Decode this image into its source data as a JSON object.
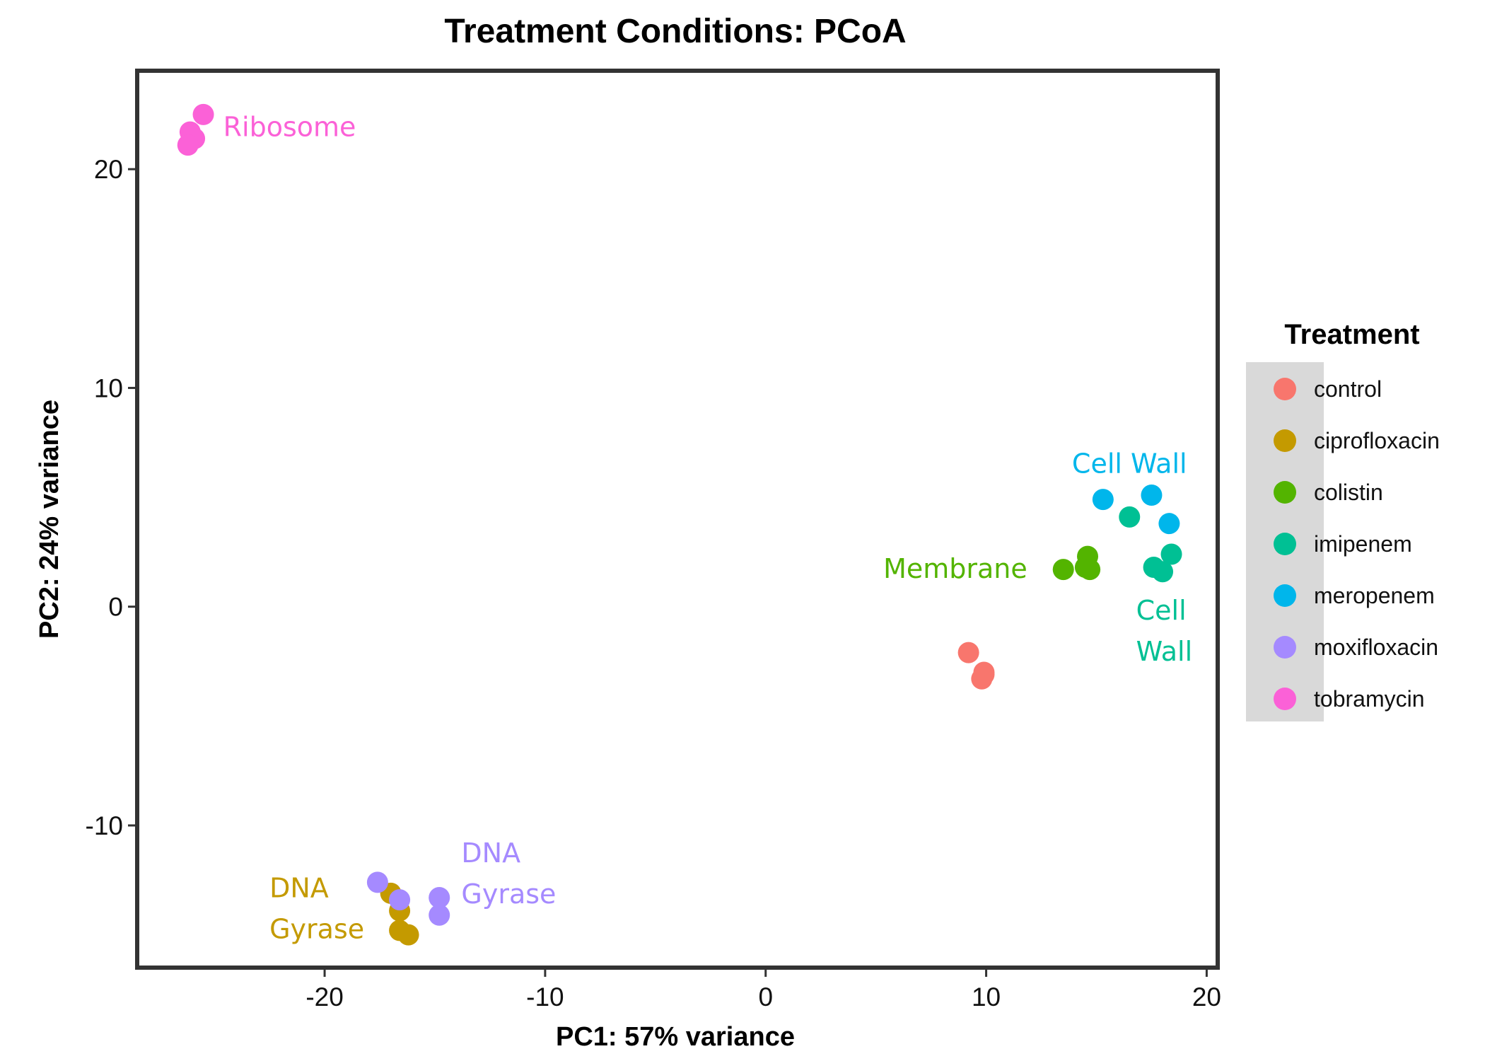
{
  "chart_data": {
    "type": "scatter",
    "title": "Treatment Conditions: PCoA",
    "xlabel": "PC1: 57% variance",
    "ylabel": "PC2: 24% variance",
    "xlim": [
      -28.5,
      20.5
    ],
    "ylim": [
      -16.5,
      24.5
    ],
    "xticks": [
      -20,
      -10,
      0,
      10,
      20
    ],
    "yticks": [
      -10,
      0,
      10,
      20
    ],
    "xtick_labels": [
      "-20",
      "-10",
      "0",
      "10",
      "20"
    ],
    "ytick_labels": [
      "-10",
      "0",
      "10",
      "20"
    ],
    "grid": false,
    "legend": {
      "title": "Treatment",
      "position": "right"
    },
    "series": [
      {
        "name": "control",
        "color": "#F8766D",
        "points": [
          [
            9.2,
            -2.1
          ],
          [
            9.9,
            -3.1
          ],
          [
            9.8,
            -3.3
          ],
          [
            9.9,
            -3.0
          ]
        ]
      },
      {
        "name": "ciprofloxacin",
        "color": "#C49A00",
        "points": [
          [
            -17.0,
            -13.1
          ],
          [
            -16.6,
            -13.9
          ],
          [
            -16.6,
            -14.8
          ],
          [
            -16.2,
            -15.0
          ]
        ]
      },
      {
        "name": "colistin",
        "color": "#53B400",
        "points": [
          [
            13.5,
            1.7
          ],
          [
            14.6,
            2.3
          ],
          [
            14.5,
            1.8
          ],
          [
            14.7,
            1.7
          ]
        ]
      },
      {
        "name": "imipenem",
        "color": "#00C094",
        "points": [
          [
            16.5,
            4.1
          ],
          [
            17.6,
            1.8
          ],
          [
            18.0,
            1.6
          ],
          [
            18.4,
            2.4
          ]
        ]
      },
      {
        "name": "meropenem",
        "color": "#00B6EB",
        "points": [
          [
            15.3,
            4.9
          ],
          [
            17.5,
            5.1
          ],
          [
            18.3,
            3.8
          ]
        ]
      },
      {
        "name": "moxifloxacin",
        "color": "#A58AFF",
        "points": [
          [
            -17.6,
            -12.6
          ],
          [
            -16.6,
            -13.4
          ],
          [
            -14.8,
            -13.3
          ],
          [
            -14.8,
            -14.1
          ]
        ]
      },
      {
        "name": "tobramycin",
        "color": "#FB61D7",
        "points": [
          [
            -25.5,
            22.5
          ],
          [
            -26.1,
            21.7
          ],
          [
            -25.9,
            21.4
          ],
          [
            -26.2,
            21.1
          ]
        ]
      }
    ],
    "annotations": [
      {
        "lines": [
          "Ribosome"
        ],
        "x": -24.6,
        "y": 21.9,
        "color": "#FB61D7",
        "anchor": "start"
      },
      {
        "lines": [
          "Cell Wall"
        ],
        "x": 16.5,
        "y": 6.5,
        "color": "#00B6EB",
        "anchor": "middle"
      },
      {
        "lines": [
          "Membrane"
        ],
        "x": 8.6,
        "y": 1.7,
        "color": "#53B400",
        "anchor": "middle"
      },
      {
        "lines": [
          "Cell",
          "Wall"
        ],
        "x": 16.8,
        "y": -0.2,
        "color": "#00C094",
        "anchor": "start"
      },
      {
        "lines": [
          "DNA",
          "Gyrase"
        ],
        "x": -13.8,
        "y": -11.3,
        "color": "#A58AFF",
        "anchor": "start"
      },
      {
        "lines": [
          "DNA",
          "Gyrase"
        ],
        "x": -22.5,
        "y": -12.9,
        "color": "#C49A00",
        "anchor": "start"
      }
    ]
  }
}
